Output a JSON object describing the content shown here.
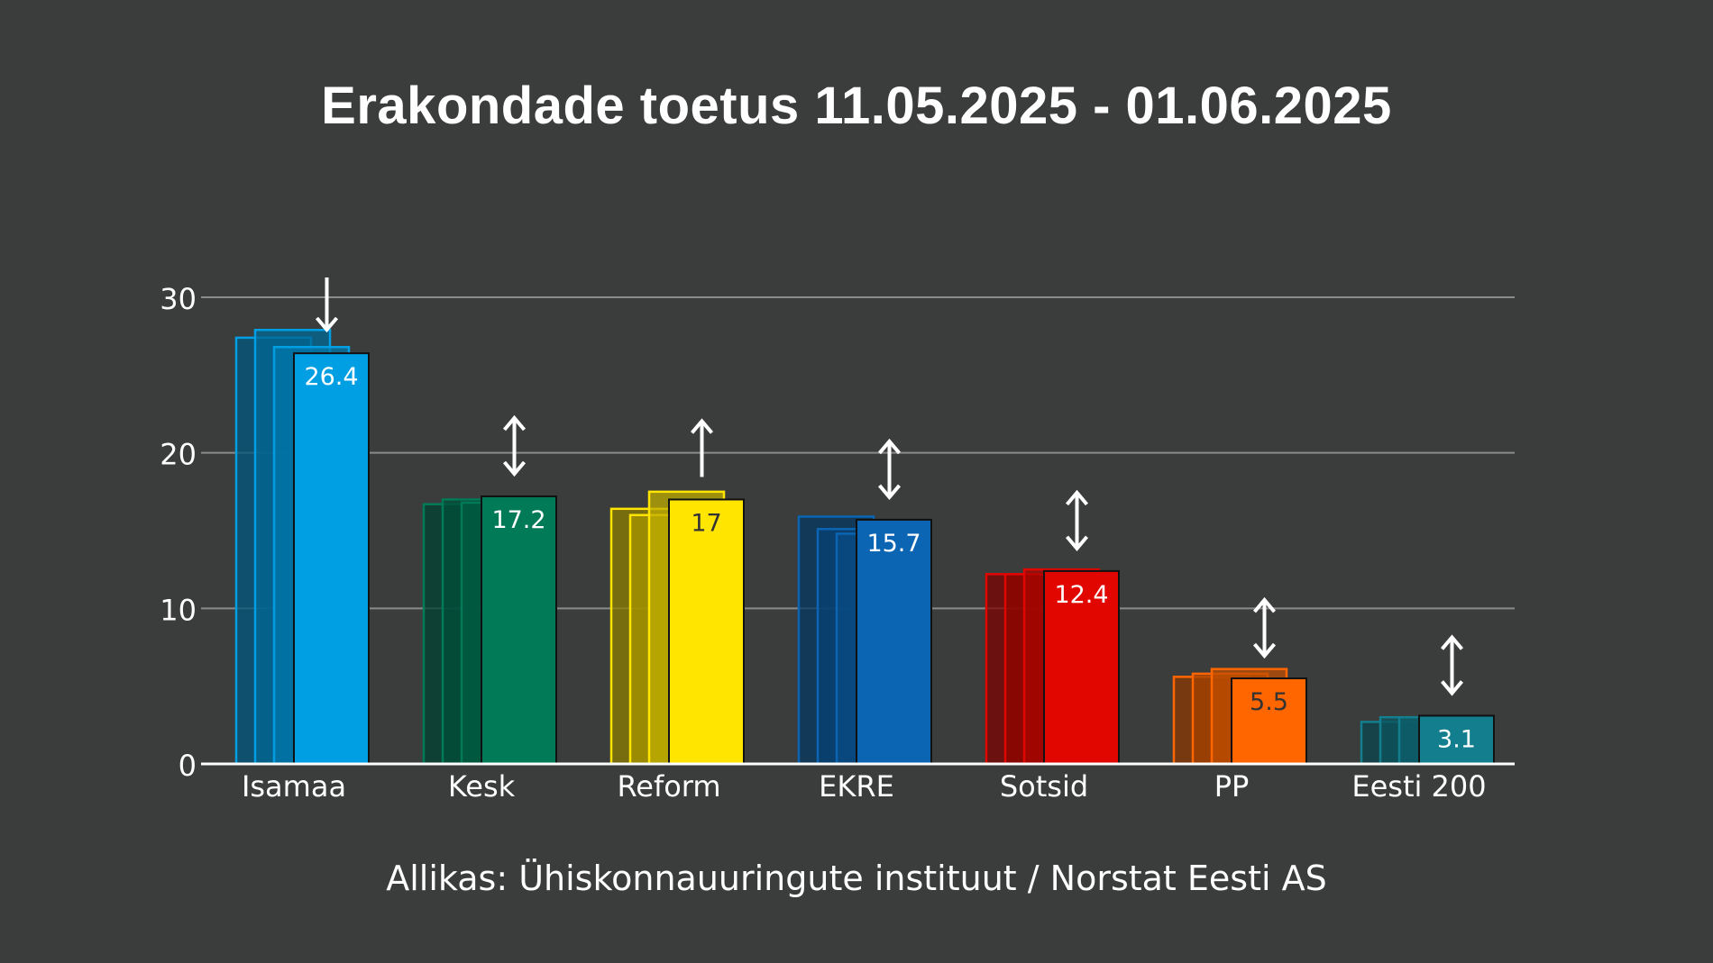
{
  "title": "Erakondade toetus 11.05.2025 - 01.06.2025",
  "source": "Allikas: Ühiskonnauuringute instituut / Norstat Eesti AS",
  "colors": {
    "background": "#3b3c3c",
    "gridline": "#8a8a8a",
    "text": "#ffffff"
  },
  "chart_data": {
    "type": "bar",
    "title": "Erakondade toetus 11.05.2025 - 01.06.2025",
    "xlabel": "",
    "ylabel": "",
    "ylim": [
      0,
      30
    ],
    "yticks": [
      0,
      10,
      20,
      30
    ],
    "grid": true,
    "categories": [
      "Isamaa",
      "Kesk",
      "Reform",
      "EKRE",
      "Sotsid",
      "PP",
      "Eesti 200"
    ],
    "series": [
      {
        "values": [
          27.4,
          16.7,
          16.4,
          15.9,
          12.2,
          5.6,
          2.7
        ]
      },
      {
        "values": [
          27.9,
          17.0,
          16.0,
          15.1,
          12.2,
          5.8,
          3.0
        ]
      },
      {
        "values": [
          26.8,
          16.8,
          17.5,
          14.8,
          12.5,
          6.1,
          3.0
        ]
      },
      {
        "values": [
          26.4,
          17.2,
          17.0,
          15.7,
          12.4,
          5.5,
          3.1
        ]
      }
    ],
    "labels": [
      "26.4",
      "17.2",
      "17",
      "15.7",
      "12.4",
      "5.5",
      "3.1"
    ],
    "bar_colors": [
      "#009fe3",
      "#007a57",
      "#ffe500",
      "#0b65b2",
      "#e10600",
      "#ff6600",
      "#137f8e"
    ],
    "label_colors": [
      "#ffffff",
      "#ffffff",
      "#333333",
      "#ffffff",
      "#ffffff",
      "#333333",
      "#ffffff"
    ],
    "trend_arrows": [
      "down",
      "both",
      "up",
      "both",
      "both",
      "both",
      "both"
    ]
  }
}
